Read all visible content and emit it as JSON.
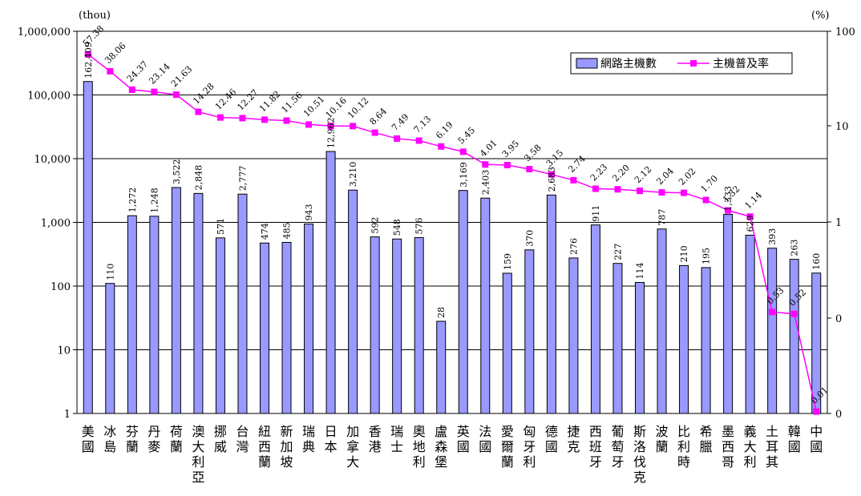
{
  "chart_data": {
    "type": "bar",
    "left_unit": "(thou)",
    "right_unit": "(%)",
    "left_ticks": [
      "1,000,000",
      "100,000",
      "10,000",
      "1,000",
      "100",
      "10",
      "1"
    ],
    "right_ticks": [
      "100",
      "10",
      "1",
      "0",
      "0"
    ],
    "legend": {
      "position": "top-right",
      "bar_label": "網路主機數",
      "line_label": "主機普及率"
    },
    "colors": {
      "bar_fill": "#9999ff",
      "bar_stroke": "#000000",
      "line": "#ff00ff"
    },
    "categories": [
      "美國",
      "冰島",
      "芬蘭",
      "丹麥",
      "荷蘭",
      "澳大利亞",
      "挪威",
      "台灣",
      "紐西蘭",
      "新加坡",
      "瑞典",
      "日本",
      "加拿大",
      "香港",
      "瑞士",
      "奧地利",
      "盧森堡",
      "英國",
      "法國",
      "愛爾蘭",
      "匈牙利",
      "德國",
      "捷克",
      "西班牙",
      "葡萄牙",
      "斯洛伐克",
      "波蘭",
      "比利時",
      "希臘",
      "墨西哥",
      "義大利",
      "土耳其",
      "韓國",
      "中國"
    ],
    "series": [
      {
        "name": "網路主機數",
        "values": [
          162409,
          110,
          1272,
          1248,
          3522,
          2848,
          571,
          2777,
          474,
          485,
          943,
          12962,
          3210,
          592,
          548,
          576,
          28,
          3169,
          2403,
          159,
          370,
          2683,
          276,
          911,
          227,
          114,
          787,
          210,
          195,
          1333,
          629,
          393,
          263,
          160
        ],
        "labels": [
          "162,409",
          "110",
          "1,272",
          "1,248",
          "3,522",
          "2,848",
          "571",
          "2,777",
          "474",
          "485",
          "943",
          "12,962",
          "3,210",
          "592",
          "548",
          "576",
          "28",
          "3,169",
          "2,403",
          "159",
          "370",
          "2,683",
          "276",
          "911",
          "227",
          "114",
          "787",
          "210",
          "195",
          "1,333",
          "629",
          "393",
          "263",
          "160"
        ]
      },
      {
        "name": "主機普及率",
        "values": [
          57.38,
          38.06,
          24.37,
          23.14,
          21.63,
          14.28,
          12.46,
          12.27,
          11.82,
          11.56,
          10.51,
          10.16,
          10.12,
          8.64,
          7.49,
          7.13,
          6.19,
          5.45,
          4.01,
          3.95,
          3.58,
          3.15,
          2.74,
          2.23,
          2.2,
          2.12,
          2.04,
          2.02,
          1.7,
          1.32,
          1.14,
          0.53,
          0.52,
          0.01
        ],
        "labels": [
          "57.38",
          "38.06",
          "24.37",
          "23.14",
          "21.63",
          "14.28",
          "12.46",
          "12.27",
          "11.82",
          "11.56",
          "10.51",
          "10.16",
          "10.12",
          "8.64",
          "7.49",
          "7.13",
          "6.19",
          "5.45",
          "4.01",
          "3.95",
          "3.58",
          "3.15",
          "2.74",
          "2.23",
          "2.20",
          "2.12",
          "2.04",
          "2.02",
          "1.70",
          "1.32",
          "1.14",
          "0.53",
          "0.52",
          "0.01"
        ]
      }
    ]
  }
}
